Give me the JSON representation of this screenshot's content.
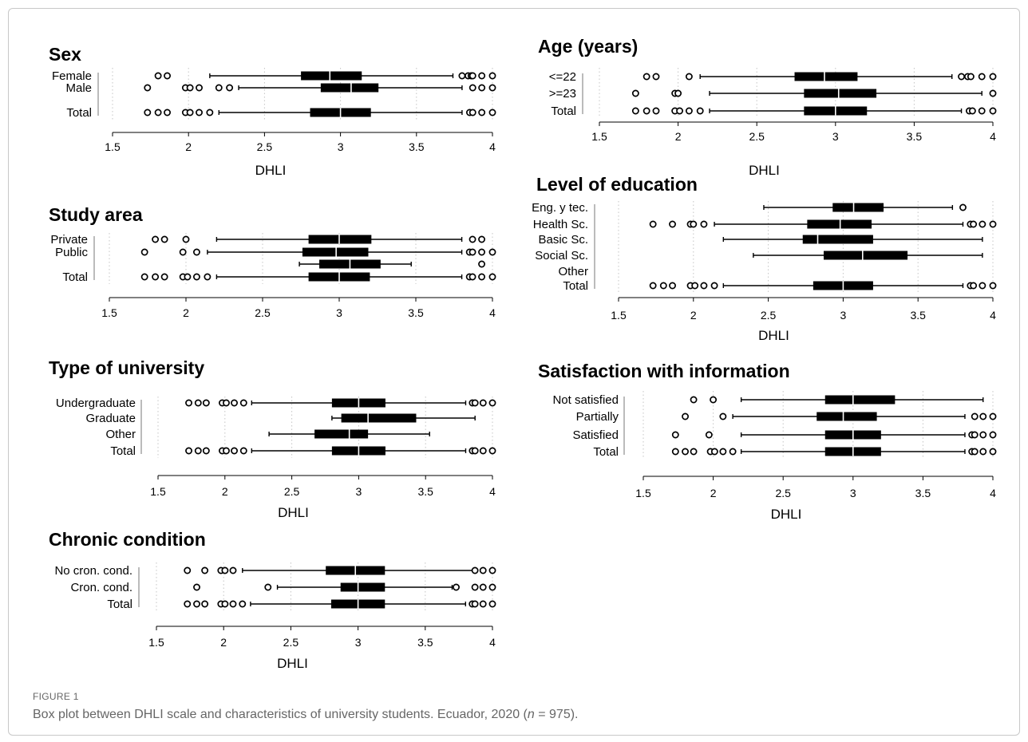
{
  "figure": {
    "label": "FIGURE 1",
    "caption_main": "Box plot between DHLI scale and characteristics of university students. Ecuador, 2020 (",
    "caption_n": "n",
    "caption_tail": " = 975)."
  },
  "chart_data": [
    {
      "type": "boxplot",
      "title": "Sex",
      "xlabel": "DHLI",
      "xlim": [
        1.5,
        4
      ],
      "ticks": [
        "1.5",
        "2",
        "2.5",
        "3",
        "3.5",
        "4"
      ],
      "grid": "vertical dotted",
      "series": [
        {
          "name": "Female",
          "min": 2.14,
          "q1": 2.74,
          "median": 2.93,
          "q3": 3.14,
          "max": 3.74,
          "outliers": [
            1.8,
            1.86,
            3.8,
            3.84,
            3.86,
            3.87,
            3.93,
            4.0
          ]
        },
        {
          "name": "Male",
          "min": 2.33,
          "q1": 2.87,
          "median": 3.07,
          "q3": 3.25,
          "max": 3.8,
          "outliers": [
            1.73,
            1.98,
            2.01,
            2.07,
            2.2,
            2.27,
            3.87,
            3.93,
            4.0
          ]
        },
        {
          "name": "Total",
          "min": 2.2,
          "q1": 2.8,
          "median": 3.0,
          "q3": 3.2,
          "max": 3.8,
          "outliers": [
            1.73,
            1.8,
            1.86,
            1.98,
            2.01,
            2.07,
            2.14,
            3.85,
            3.87,
            3.93,
            4.0
          ]
        }
      ]
    },
    {
      "type": "boxplot",
      "title": "Study area",
      "xlabel": "",
      "xlim": [
        1.5,
        4
      ],
      "ticks": [
        "1.5",
        "2",
        "2.5",
        "3",
        "3.5",
        "4"
      ],
      "grid": "vertical dotted",
      "series": [
        {
          "name": "Private",
          "min": 2.2,
          "q1": 2.8,
          "median": 3.0,
          "q3": 3.21,
          "max": 3.8,
          "outliers": [
            1.8,
            1.86,
            2.0,
            3.87,
            3.93
          ]
        },
        {
          "name": "Public",
          "min": 2.14,
          "q1": 2.76,
          "median": 2.98,
          "q3": 3.19,
          "max": 3.8,
          "outliers": [
            1.73,
            1.98,
            2.07,
            3.85,
            3.87,
            3.93,
            4.0
          ]
        },
        {
          "name": "",
          "min": 2.74,
          "q1": 2.87,
          "median": 3.07,
          "q3": 3.27,
          "max": 3.47,
          "outliers": [
            3.93
          ]
        },
        {
          "name": "Total",
          "min": 2.2,
          "q1": 2.8,
          "median": 3.0,
          "q3": 3.2,
          "max": 3.8,
          "outliers": [
            1.73,
            1.8,
            1.86,
            1.98,
            2.01,
            2.07,
            2.14,
            3.85,
            3.87,
            3.93,
            4.0
          ]
        }
      ]
    },
    {
      "type": "boxplot",
      "title": "Type of university",
      "xlabel": "DHLI",
      "xlim": [
        1.5,
        4
      ],
      "ticks": [
        "1.5",
        "2",
        "2.5",
        "3",
        "3.5",
        "4"
      ],
      "grid": "vertical dotted",
      "series": [
        {
          "name": "Undergraduate",
          "min": 2.2,
          "q1": 2.8,
          "median": 3.0,
          "q3": 3.2,
          "max": 3.8,
          "outliers": [
            1.73,
            1.8,
            1.86,
            1.98,
            2.01,
            2.07,
            2.14,
            3.85,
            3.87,
            3.93,
            4.0
          ]
        },
        {
          "name": "Graduate",
          "min": 2.8,
          "q1": 2.87,
          "median": 3.07,
          "q3": 3.43,
          "max": 3.87,
          "outliers": []
        },
        {
          "name": "Other",
          "min": 2.33,
          "q1": 2.67,
          "median": 2.93,
          "q3": 3.07,
          "max": 3.53,
          "outliers": []
        },
        {
          "name": "Total",
          "min": 2.2,
          "q1": 2.8,
          "median": 3.0,
          "q3": 3.2,
          "max": 3.8,
          "outliers": [
            1.73,
            1.8,
            1.86,
            1.98,
            2.01,
            2.07,
            2.14,
            3.85,
            3.87,
            3.93,
            4.0
          ]
        }
      ]
    },
    {
      "type": "boxplot",
      "title": "Chronic condition",
      "xlabel": "DHLI",
      "xlim": [
        1.5,
        4
      ],
      "ticks": [
        "1.5",
        "2",
        "2.5",
        "3",
        "3.5",
        "4"
      ],
      "grid": "vertical dotted",
      "series": [
        {
          "name": "No cron. cond.",
          "min": 2.14,
          "q1": 2.76,
          "median": 2.98,
          "q3": 3.2,
          "max": 3.87,
          "outliers": [
            1.73,
            1.86,
            1.98,
            2.01,
            2.07,
            3.87,
            3.93,
            4.0
          ]
        },
        {
          "name": "Cron. cond.",
          "min": 2.4,
          "q1": 2.87,
          "median": 3.0,
          "q3": 3.2,
          "max": 3.7,
          "outliers": [
            1.8,
            2.33,
            3.73,
            3.87,
            3.93,
            4.0
          ]
        },
        {
          "name": "Total",
          "min": 2.2,
          "q1": 2.8,
          "median": 3.0,
          "q3": 3.2,
          "max": 3.8,
          "outliers": [
            1.73,
            1.8,
            1.86,
            1.98,
            2.01,
            2.07,
            2.14,
            3.85,
            3.87,
            3.93,
            4.0
          ]
        }
      ]
    },
    {
      "type": "boxplot",
      "title": "Age (years)",
      "xlabel": "DHLI",
      "xlim": [
        1.5,
        4
      ],
      "ticks": [
        "1.5",
        "2",
        "2.5",
        "3",
        "3.5",
        "4"
      ],
      "grid": "vertical dotted",
      "series": [
        {
          "name": "<=22",
          "min": 2.14,
          "q1": 2.74,
          "median": 2.93,
          "q3": 3.14,
          "max": 3.74,
          "outliers": [
            1.8,
            1.86,
            2.07,
            3.8,
            3.84,
            3.86,
            3.93,
            4.0
          ]
        },
        {
          "name": ">=23",
          "min": 2.2,
          "q1": 2.8,
          "median": 3.02,
          "q3": 3.26,
          "max": 3.93,
          "outliers": [
            1.73,
            1.98,
            2.0,
            4.0
          ]
        },
        {
          "name": "Total",
          "min": 2.2,
          "q1": 2.8,
          "median": 3.0,
          "q3": 3.2,
          "max": 3.8,
          "outliers": [
            1.73,
            1.8,
            1.86,
            1.98,
            2.01,
            2.07,
            2.14,
            3.85,
            3.87,
            3.93,
            4.0
          ]
        }
      ]
    },
    {
      "type": "boxplot",
      "title": "Level of education",
      "xlabel": "DHLI",
      "xlim": [
        1.5,
        4
      ],
      "ticks": [
        "1.5",
        "2",
        "2.5",
        "3",
        "3.5",
        "4"
      ],
      "grid": "vertical dotted",
      "series": [
        {
          "name": "Eng. y tec.",
          "min": 2.47,
          "q1": 2.93,
          "median": 3.07,
          "q3": 3.27,
          "max": 3.73,
          "outliers": [
            3.8
          ]
        },
        {
          "name": "Health Sc.",
          "min": 2.14,
          "q1": 2.76,
          "median": 2.98,
          "q3": 3.19,
          "max": 3.8,
          "outliers": [
            1.73,
            1.86,
            1.98,
            2.0,
            2.07,
            3.85,
            3.87,
            3.93,
            4.0
          ]
        },
        {
          "name": "Basic Sc.",
          "min": 2.2,
          "q1": 2.73,
          "median": 2.83,
          "q3": 3.2,
          "max": 3.93,
          "outliers": []
        },
        {
          "name": "Social Sc.",
          "min": 2.4,
          "q1": 2.87,
          "median": 3.13,
          "q3": 3.43,
          "max": 3.93,
          "outliers": []
        },
        {
          "name": "Other",
          "min": null,
          "q1": null,
          "median": null,
          "q3": null,
          "max": null,
          "outliers": []
        },
        {
          "name": "Total",
          "min": 2.2,
          "q1": 2.8,
          "median": 3.0,
          "q3": 3.2,
          "max": 3.8,
          "outliers": [
            1.73,
            1.8,
            1.86,
            1.98,
            2.01,
            2.07,
            2.14,
            3.85,
            3.87,
            3.93,
            4.0
          ]
        }
      ]
    },
    {
      "type": "boxplot",
      "title": "Satisfaction with information",
      "xlabel": "DHLI",
      "xlim": [
        1.5,
        4
      ],
      "ticks": [
        "1.5",
        "2",
        "2.5",
        "3",
        "3.5",
        "4"
      ],
      "grid": "vertical dotted",
      "series": [
        {
          "name": "Not satisfied",
          "min": 2.2,
          "q1": 2.8,
          "median": 3.0,
          "q3": 3.3,
          "max": 3.93,
          "outliers": [
            1.86,
            2.0
          ]
        },
        {
          "name": "Partially",
          "min": 2.14,
          "q1": 2.74,
          "median": 2.93,
          "q3": 3.17,
          "max": 3.8,
          "outliers": [
            1.8,
            2.07,
            3.87,
            3.93,
            4.0
          ]
        },
        {
          "name": "Satisfied",
          "min": 2.2,
          "q1": 2.8,
          "median": 3.0,
          "q3": 3.2,
          "max": 3.8,
          "outliers": [
            1.73,
            1.97,
            3.85,
            3.87,
            3.93,
            4.0
          ]
        },
        {
          "name": "Total",
          "min": 2.2,
          "q1": 2.8,
          "median": 3.0,
          "q3": 3.2,
          "max": 3.8,
          "outliers": [
            1.73,
            1.8,
            1.86,
            1.98,
            2.01,
            2.07,
            2.14,
            3.85,
            3.87,
            3.93,
            4.0
          ]
        }
      ]
    }
  ]
}
